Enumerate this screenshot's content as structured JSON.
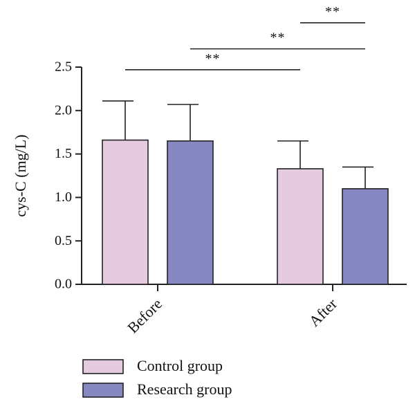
{
  "chart_data": {
    "type": "bar",
    "ylabel": "cys-C (mg/L)",
    "ylim": [
      0,
      2.5
    ],
    "yticks": [
      "0.0",
      "0.5",
      "1.0",
      "1.5",
      "2.0",
      "2.5"
    ],
    "categories": [
      "Before",
      "After"
    ],
    "series": [
      {
        "name": "Control group",
        "color": "#e6cbe0",
        "values": [
          1.66,
          1.33
        ],
        "errors": [
          0.45,
          0.32
        ]
      },
      {
        "name": "Research group",
        "color": "#8688c2",
        "values": [
          1.65,
          1.1
        ],
        "errors": [
          0.42,
          0.25
        ]
      }
    ],
    "significance": [
      {
        "label": "**",
        "from": [
          "Before",
          "Control group"
        ],
        "to": [
          "After",
          "Control group"
        ],
        "y": 2.47
      },
      {
        "label": "**",
        "from": [
          "Before",
          "Research group"
        ],
        "to": [
          "After",
          "Research group"
        ],
        "y": 2.71
      },
      {
        "label": "**",
        "from": [
          "After",
          "Control group"
        ],
        "to": [
          "After",
          "Research group"
        ],
        "y": 3.01
      }
    ],
    "legend_position": "bottom-left"
  }
}
